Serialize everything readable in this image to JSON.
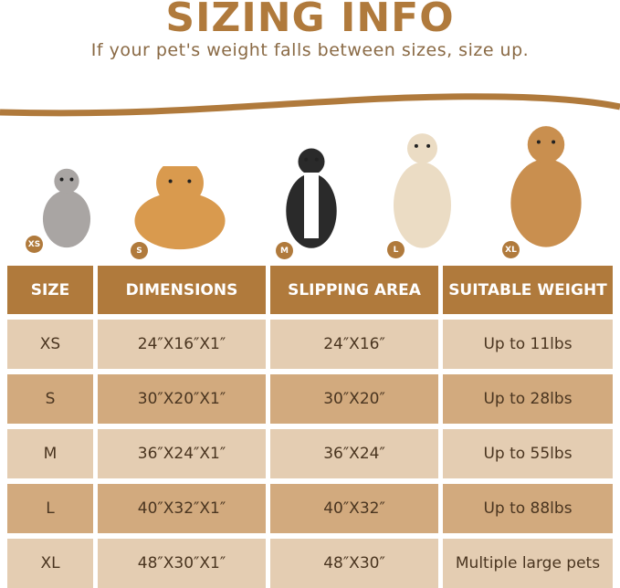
{
  "title": "SIZING INFO",
  "subtitle": "If your pet's weight falls between sizes, size up.",
  "colors": {
    "accent": "#b07a3c",
    "row_light": "#e4cdb2",
    "row_dark": "#d2aa7e",
    "header_text": "#ffffff",
    "cell_text": "#4a3520"
  },
  "pets": [
    {
      "badge": "XS",
      "animal": "cat"
    },
    {
      "badge": "S",
      "animal": "corgi"
    },
    {
      "badge": "M",
      "animal": "border-collie"
    },
    {
      "badge": "L",
      "animal": "white-golden-retriever"
    },
    {
      "badge": "XL",
      "animal": "golden-retriever"
    }
  ],
  "table": {
    "headers": [
      "SIZE",
      "DIMENSIONS",
      "SLIPPING AREA",
      "SUITABLE WEIGHT"
    ],
    "rows": [
      [
        "XS",
        "24″X16″X1″",
        "24″X16″",
        "Up to 11lbs"
      ],
      [
        "S",
        "30″X20″X1″",
        "30″X20″",
        "Up to 28lbs"
      ],
      [
        "M",
        "36″X24″X1″",
        "36″X24″",
        "Up to 55lbs"
      ],
      [
        "L",
        "40″X32″X1″",
        "40″X32″",
        "Up to 88lbs"
      ],
      [
        "XL",
        "48″X30″X1″",
        "48″X30″",
        "Multiple large pets"
      ]
    ]
  }
}
